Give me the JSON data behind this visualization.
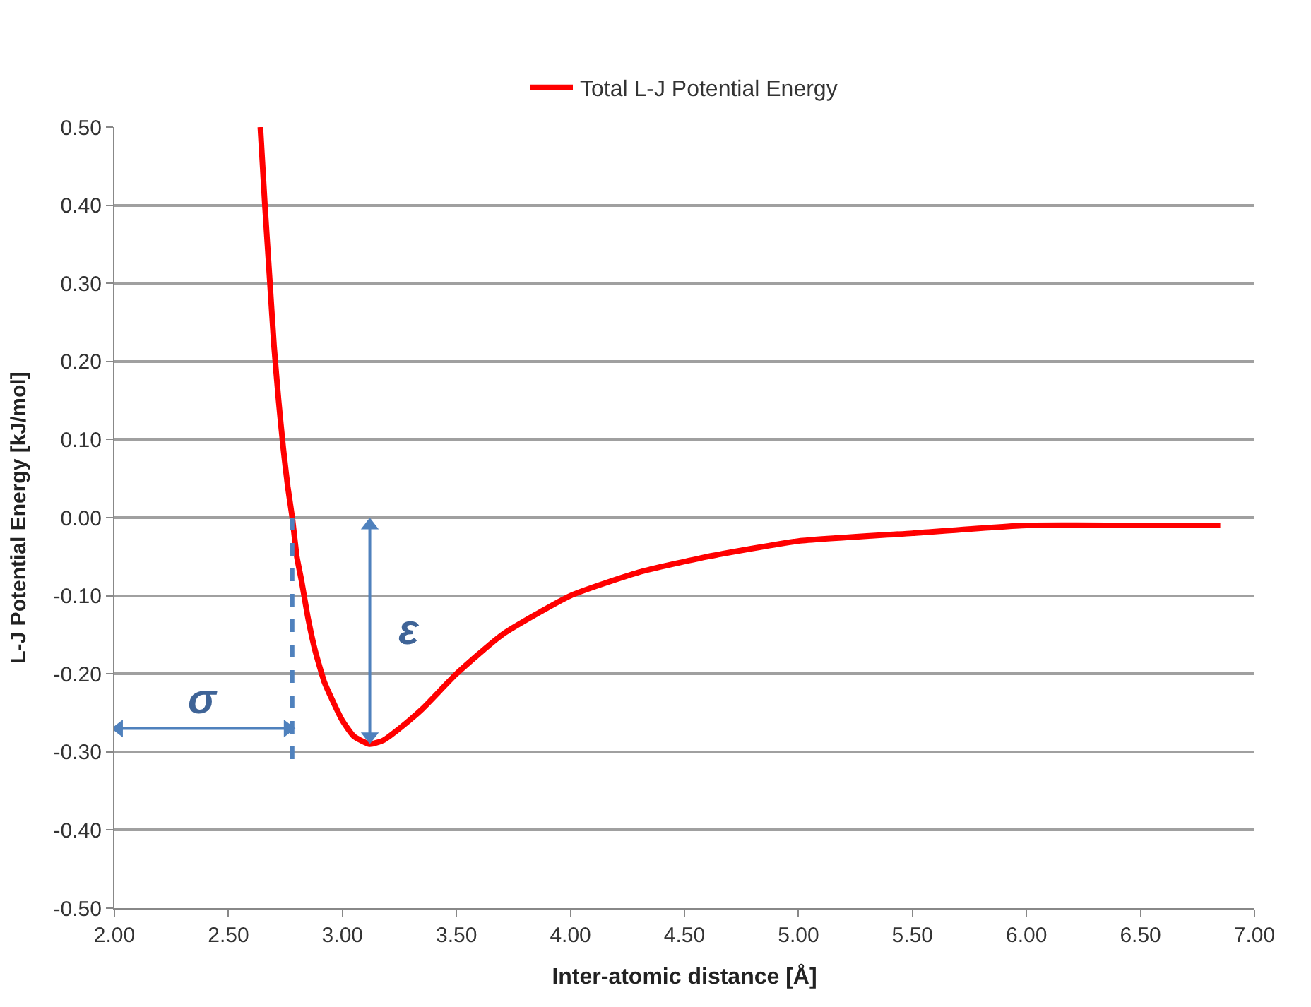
{
  "chart_data": {
    "type": "line",
    "xlabel": "Inter-atomic distance [Å]",
    "ylabel": "L-J Potential Energy [kJ/mol]",
    "x": [
      2.64,
      2.66,
      2.68,
      2.7,
      2.72,
      2.74,
      2.76,
      2.78,
      2.8,
      2.82,
      2.85,
      2.88,
      2.92,
      2.95,
      3.0,
      3.05,
      3.12,
      3.18,
      3.25,
      3.35,
      3.5,
      3.7,
      4.0,
      4.3,
      4.6,
      5.0,
      5.5,
      6.0,
      6.5,
      6.85
    ],
    "series": [
      {
        "name": "Total L-J Potential Energy",
        "color": "#ff0000",
        "values": [
          0.5,
          0.4,
          0.31,
          0.22,
          0.15,
          0.09,
          0.04,
          0.0,
          -0.05,
          -0.08,
          -0.13,
          -0.17,
          -0.21,
          -0.23,
          -0.26,
          -0.28,
          -0.29,
          -0.285,
          -0.27,
          -0.245,
          -0.2,
          -0.15,
          -0.1,
          -0.07,
          -0.05,
          -0.03,
          -0.02,
          -0.01,
          -0.01,
          -0.01
        ]
      },
      {
        "type": "line",
        "line_style": "dashed",
        "color": "#4f81bd",
        "x": [
          2.78,
          2.78
        ],
        "values": [
          0.0,
          -0.31
        ]
      },
      {
        "type": "line",
        "line_style": "solid",
        "marker": "triangle",
        "color": "#4f81bd",
        "x": [
          2.02,
          2.76
        ],
        "values": [
          -0.27,
          -0.27
        ]
      },
      {
        "type": "line",
        "line_style": "solid",
        "marker": "triangle",
        "color": "#4f81bd",
        "x": [
          3.12,
          3.12
        ],
        "values": [
          -0.01,
          -0.28
        ]
      }
    ],
    "xlim": [
      2.0,
      7.0
    ],
    "xticks": [
      {
        "value": 2.0,
        "label": "2.00"
      },
      {
        "value": 2.5,
        "label": "2.50"
      },
      {
        "value": 3.0,
        "label": "3.00"
      },
      {
        "value": 3.5,
        "label": "3.50"
      },
      {
        "value": 4.0,
        "label": "4.00"
      },
      {
        "value": 4.5,
        "label": "4.50"
      },
      {
        "value": 5.0,
        "label": "5.00"
      },
      {
        "value": 5.5,
        "label": "5.50"
      },
      {
        "value": 6.0,
        "label": "6.00"
      },
      {
        "value": 6.5,
        "label": "6.50"
      },
      {
        "value": 7.0,
        "label": "7.00"
      }
    ],
    "ylim": [
      -0.5,
      0.5
    ],
    "yticks": [
      {
        "value": -0.5,
        "label": "-0.50"
      },
      {
        "value": -0.4,
        "label": "-0.40"
      },
      {
        "value": -0.3,
        "label": "-0.30"
      },
      {
        "value": -0.2,
        "label": "-0.20"
      },
      {
        "value": -0.1,
        "label": "-0.10"
      },
      {
        "value": 0,
        "label": "0.00"
      },
      {
        "value": 0.1,
        "label": "0.10"
      },
      {
        "value": 0.2,
        "label": "0.20"
      },
      {
        "value": 0.3,
        "label": "0.30"
      },
      {
        "value": 0.4,
        "label": "0.40"
      },
      {
        "value": 0.5,
        "label": "0.50"
      }
    ],
    "annotations": [
      "σ",
      "ε"
    ],
    "grid": "y",
    "legend": "top",
    "marker": "none",
    "line_style": "solid"
  }
}
